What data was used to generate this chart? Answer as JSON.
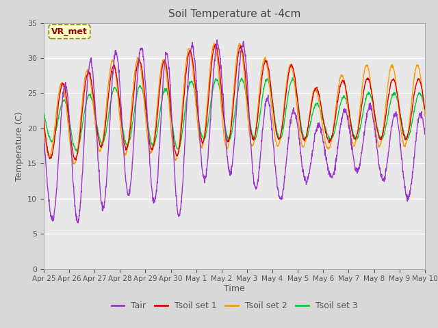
{
  "title": "Soil Temperature at -4cm",
  "xlabel": "Time",
  "ylabel": "Temperature (C)",
  "ylim": [
    0,
    35
  ],
  "colors": {
    "Tair": "#9933cc",
    "Tsoil1": "#dd0000",
    "Tsoil2": "#ff9900",
    "Tsoil3": "#00cc33"
  },
  "legend_labels": [
    "Tair",
    "Tsoil set 1",
    "Tsoil set 2",
    "Tsoil set 3"
  ],
  "annotation_text": "VR_met",
  "tick_labels": [
    "Apr 25",
    "Apr 26",
    "Apr 27",
    "Apr 28",
    "Apr 29",
    "Apr 30",
    "May 1",
    "May 2",
    "May 3",
    "May 4",
    "May 5",
    "May 6",
    "May 7",
    "May 8",
    "May 9",
    "May 10"
  ],
  "yticks": [
    0,
    5,
    10,
    15,
    20,
    25,
    30,
    35
  ],
  "fig_bg": "#d8d8d8",
  "plot_bg": "#e8e8e8",
  "tair_daily_min": [
    7.5,
    6.2,
    8.0,
    10.0,
    11.5,
    5.5,
    12.0,
    14.0,
    13.0,
    8.5,
    12.5,
    12.5,
    14.0,
    14.0,
    10.0
  ],
  "tair_daily_max": [
    22.0,
    27.0,
    30.0,
    31.0,
    31.5,
    30.5,
    32.0,
    32.0,
    32.0,
    22.5,
    22.5,
    20.0,
    23.0,
    23.0,
    22.0
  ],
  "tsoil1_daily_min": [
    16.0,
    15.0,
    17.5,
    17.0,
    17.5,
    15.5,
    18.0,
    18.0,
    18.5,
    18.5,
    18.5,
    18.0,
    18.5,
    18.5,
    18.5
  ],
  "tsoil1_daily_max": [
    26.0,
    26.5,
    28.5,
    29.0,
    30.0,
    29.5,
    31.5,
    32.0,
    31.5,
    29.0,
    29.0,
    24.5,
    27.5,
    27.0,
    27.0
  ],
  "tsoil2_daily_min": [
    16.5,
    14.5,
    17.0,
    16.0,
    17.0,
    15.0,
    17.5,
    17.0,
    17.5,
    17.5,
    17.5,
    17.0,
    17.5,
    17.5,
    17.5
  ],
  "tsoil2_daily_max": [
    26.5,
    26.5,
    29.0,
    30.0,
    30.0,
    29.5,
    32.0,
    32.0,
    32.0,
    29.0,
    29.0,
    24.0,
    29.0,
    29.0,
    29.0
  ],
  "tsoil3_daily_min": [
    19.0,
    16.5,
    18.0,
    17.5,
    18.0,
    16.5,
    18.5,
    18.5,
    18.5,
    18.5,
    18.5,
    18.5,
    18.5,
    18.5,
    18.5
  ],
  "tsoil3_daily_max": [
    24.0,
    24.0,
    25.0,
    26.0,
    26.0,
    25.5,
    27.0,
    27.0,
    27.0,
    27.0,
    27.0,
    22.5,
    25.0,
    25.0,
    25.0
  ]
}
